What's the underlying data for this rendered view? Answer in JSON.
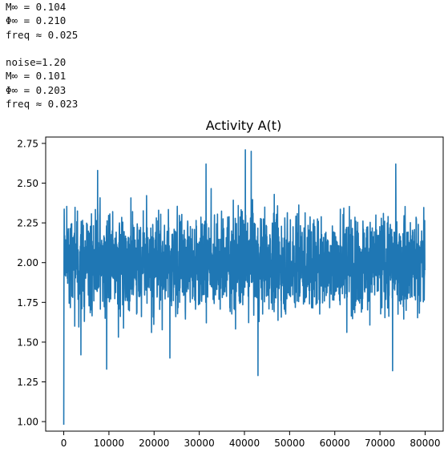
{
  "console": {
    "lines": [
      "M∞ = 0.104",
      "Φ∞ = 0.210",
      "freq ≈ 0.025",
      "",
      "noise=1.20",
      "M∞ = 0.101",
      "Φ∞ = 0.203",
      "freq ≈ 0.023"
    ]
  },
  "chart_data": {
    "type": "line",
    "title": "Activity A(t)",
    "xlabel": "",
    "ylabel": "",
    "xlim": [
      -4000,
      84000
    ],
    "ylim": [
      0.94,
      2.79
    ],
    "x_ticks": [
      0,
      10000,
      20000,
      30000,
      40000,
      50000,
      60000,
      70000,
      80000
    ],
    "y_ticks": [
      1.0,
      1.25,
      1.5,
      1.75,
      2.0,
      2.25,
      2.5,
      2.75
    ],
    "x_tick_labels": [
      "0",
      "10000",
      "20000",
      "30000",
      "40000",
      "50000",
      "60000",
      "70000",
      "80000"
    ],
    "y_tick_labels": [
      "1.00",
      "1.25",
      "1.50",
      "1.75",
      "2.00",
      "2.25",
      "2.50",
      "2.75"
    ],
    "grid": false,
    "series_color": "#1f77b4",
    "series": [
      {
        "name": "",
        "x_range": [
          0,
          80000
        ],
        "initial_value": 0.98,
        "mean": 2.0,
        "typical_band": [
          1.65,
          2.35
        ],
        "observed_max": 2.71,
        "observed_min_after_transient": 1.29,
        "notable_peaks": [
          {
            "x": 40200,
            "y": 2.71
          },
          {
            "x": 41500,
            "y": 2.7
          },
          {
            "x": 73500,
            "y": 2.62
          },
          {
            "x": 31500,
            "y": 2.62
          },
          {
            "x": 7500,
            "y": 2.58
          }
        ],
        "notable_troughs": [
          {
            "x": 43000,
            "y": 1.29
          },
          {
            "x": 72800,
            "y": 1.32
          },
          {
            "x": 9500,
            "y": 1.33
          },
          {
            "x": 23500,
            "y": 1.4
          },
          {
            "x": 3800,
            "y": 1.42
          }
        ]
      }
    ]
  }
}
